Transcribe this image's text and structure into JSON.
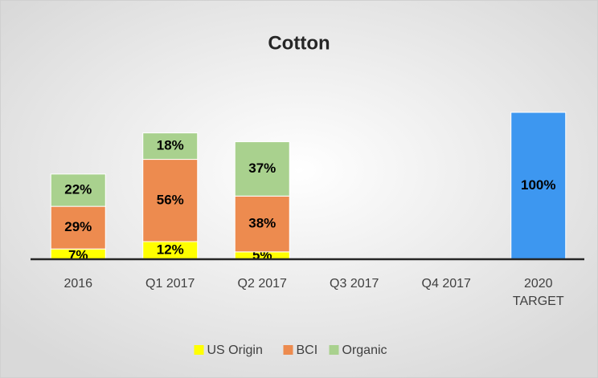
{
  "chart_data": {
    "type": "stacked_bar",
    "title": "Cotton",
    "categories": [
      "2016",
      "Q1 2017",
      "Q2 2017",
      "Q3 2017",
      "Q4 2017",
      "2020 TARGET"
    ],
    "series": [
      {
        "name": "US Origin",
        "color": "#ffff00",
        "values": [
          7,
          12,
          5,
          null,
          null,
          null
        ],
        "value_labels": [
          "7%",
          "12%",
          "5%",
          null,
          null,
          null
        ]
      },
      {
        "name": "BCI",
        "color": "#ed8b4f",
        "values": [
          29,
          56,
          38,
          null,
          null,
          null
        ],
        "value_labels": [
          "29%",
          "56%",
          "38%",
          null,
          null,
          null
        ]
      },
      {
        "name": "Organic",
        "color": "#a9d18e",
        "values": [
          22,
          18,
          37,
          null,
          null,
          null
        ],
        "value_labels": [
          "22%",
          "18%",
          "37%",
          null,
          null,
          null
        ]
      },
      {
        "color": "#3d97f0",
        "values": [
          null,
          null,
          null,
          null,
          null,
          100
        ],
        "value_labels": [
          null,
          null,
          null,
          null,
          null,
          "100%"
        ]
      }
    ],
    "ylim": [
      0,
      100
    ],
    "legend": "bottom"
  }
}
